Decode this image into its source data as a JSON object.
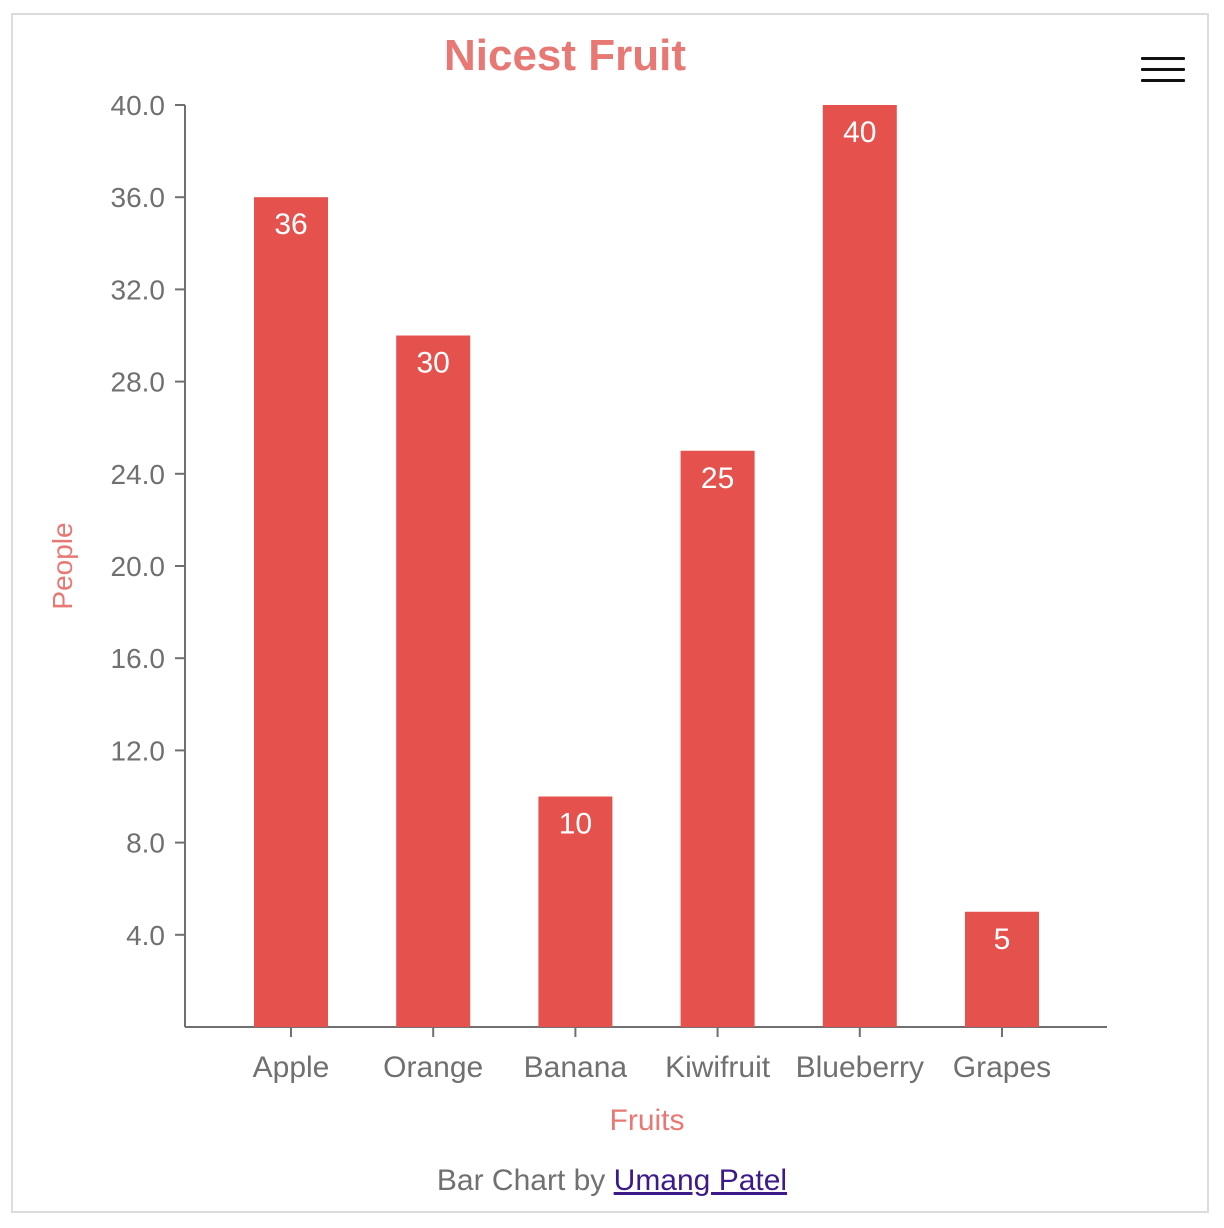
{
  "chart_data": {
    "type": "bar",
    "title": "Nicest Fruit",
    "xlabel": "Fruits",
    "ylabel": "People",
    "categories": [
      "Apple",
      "Orange",
      "Banana",
      "Kiwifruit",
      "Blueberry",
      "Grapes"
    ],
    "values": [
      36,
      30,
      10,
      25,
      40,
      5
    ],
    "ylim": [
      0,
      40
    ],
    "yticks": [
      "4.0",
      "8.0",
      "12.0",
      "16.0",
      "20.0",
      "24.0",
      "28.0",
      "32.0",
      "36.0",
      "40.0"
    ],
    "grid": false,
    "legend": "none",
    "colors": {
      "bar": "#e5524d",
      "title": "#e87874",
      "axis_label": "#e87874",
      "tick": "#707070",
      "data_label": "#ffffff"
    }
  },
  "footer": {
    "prefix": "Bar Chart by",
    "link_text": "Umang Patel"
  },
  "menu": {
    "icon": "hamburger-menu-icon"
  }
}
